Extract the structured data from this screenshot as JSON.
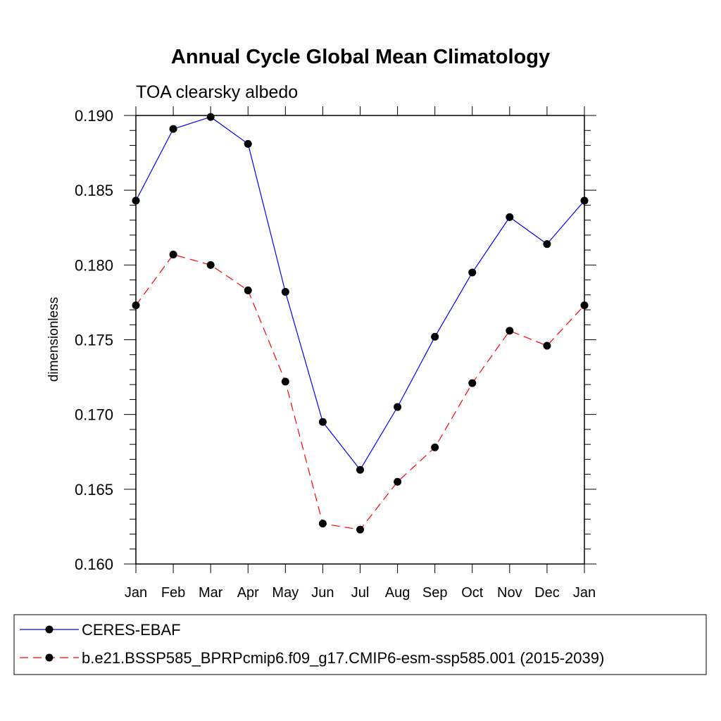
{
  "chart_data": {
    "type": "line",
    "title": "Annual Cycle Global Mean Climatology",
    "subtitle": "TOA clearsky albedo",
    "xlabel": "",
    "ylabel": "dimensionless",
    "categories": [
      "Jan",
      "Feb",
      "Mar",
      "Apr",
      "May",
      "Jun",
      "Jul",
      "Aug",
      "Sep",
      "Oct",
      "Nov",
      "Dec",
      "Jan"
    ],
    "ylim": [
      0.16,
      0.19
    ],
    "y_ticks": [
      "0.160",
      "0.165",
      "0.170",
      "0.175",
      "0.180",
      "0.185",
      "0.190"
    ],
    "legend_position": "bottom",
    "series": [
      {
        "name": "CERES-EBAF",
        "color": "#0000ff",
        "line_style": "solid",
        "marker": "filled-circle",
        "values": [
          0.1843,
          0.1891,
          0.1899,
          0.1881,
          0.1782,
          0.1695,
          0.1663,
          0.1705,
          0.1752,
          0.1795,
          0.1832,
          0.1814,
          0.1843
        ]
      },
      {
        "name": "b.e21.BSSP585_BPRPcmip6.f09_g17.CMIP6-esm-ssp585.001 (2015-2039)",
        "color": "#ff0000",
        "line_style": "dashed",
        "marker": "filled-circle",
        "values": [
          0.1773,
          0.1807,
          0.18,
          0.1783,
          0.1722,
          0.1627,
          0.1623,
          0.1655,
          0.1678,
          0.1721,
          0.1756,
          0.1746,
          0.1773
        ]
      }
    ]
  }
}
